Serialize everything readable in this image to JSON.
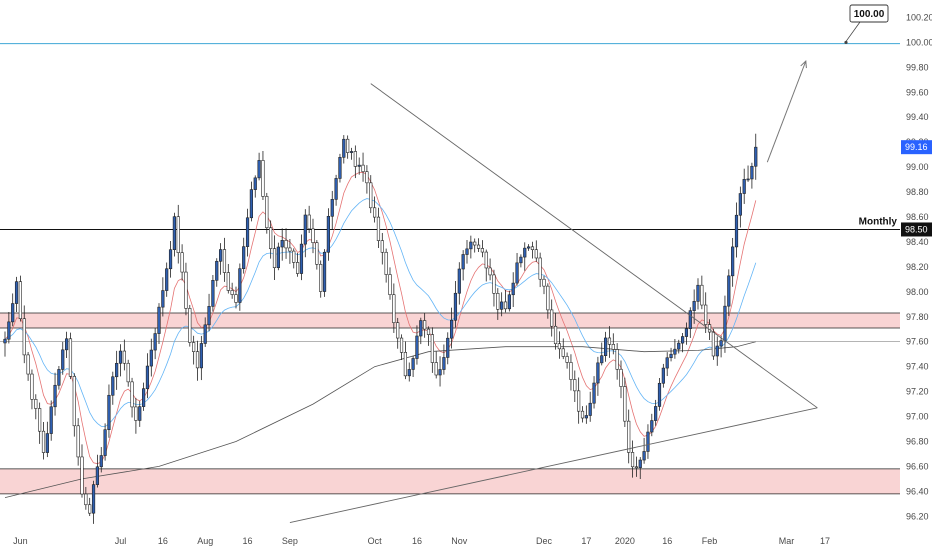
{
  "colors": {
    "background": "#ffffff",
    "up_body": "#2f5fb0",
    "down_body": "#ffffff",
    "candle_wick": "#222222",
    "zone_fill": "#f9d4d4",
    "zone_edge": "#222222",
    "target_line": "#3fa7d6",
    "ema_fast": "#e57373",
    "ema_slow": "#64b5f6",
    "ma_long": "#555555",
    "last_price_tag": "#2962ff"
  },
  "chart_data": {
    "type": "candlestick",
    "title": "",
    "xlabel": "",
    "ylabel": "",
    "ylim": [
      96.05,
      100.26
    ],
    "y_ticks": [
      "96.20",
      "96.40",
      "96.60",
      "96.80",
      "97.00",
      "97.20",
      "97.40",
      "97.60",
      "97.80",
      "98.00",
      "98.20",
      "98.40",
      "98.60",
      "98.80",
      "99.00",
      "99.20",
      "99.40",
      "99.60",
      "99.80",
      "100.00",
      "100.20"
    ],
    "x_ticks": [
      {
        "label": "Jun",
        "day": 4
      },
      {
        "label": "Jul",
        "day": 30
      },
      {
        "label": "16",
        "day": 41
      },
      {
        "label": "Aug",
        "day": 52
      },
      {
        "label": "16",
        "day": 63
      },
      {
        "label": "Sep",
        "day": 74
      },
      {
        "label": "Oct",
        "day": 96
      },
      {
        "label": "16",
        "day": 107
      },
      {
        "label": "Nov",
        "day": 118
      },
      {
        "label": "Dec",
        "day": 140
      },
      {
        "label": "17",
        "day": 151
      },
      {
        "label": "2020",
        "day": 161
      },
      {
        "label": "16",
        "day": 172
      },
      {
        "label": "Feb",
        "day": 183
      },
      {
        "label": "Mar",
        "day": 203
      },
      {
        "label": "17",
        "day": 213
      }
    ],
    "price_anchors": [
      [
        0,
        97.62
      ],
      [
        2,
        97.9
      ],
      [
        3,
        98.12
      ],
      [
        5,
        97.5
      ],
      [
        7,
        97.18
      ],
      [
        10,
        96.72
      ],
      [
        12,
        97.05
      ],
      [
        14,
        97.42
      ],
      [
        16,
        97.65
      ],
      [
        18,
        96.96
      ],
      [
        20,
        96.38
      ],
      [
        22,
        96.27
      ],
      [
        24,
        96.55
      ],
      [
        26,
        96.9
      ],
      [
        28,
        97.35
      ],
      [
        30,
        97.52
      ],
      [
        32,
        97.3
      ],
      [
        34,
        96.92
      ],
      [
        36,
        97.25
      ],
      [
        38,
        97.55
      ],
      [
        40,
        97.85
      ],
      [
        42,
        98.2
      ],
      [
        44,
        98.56
      ],
      [
        46,
        98.12
      ],
      [
        48,
        97.62
      ],
      [
        50,
        97.4
      ],
      [
        52,
        97.72
      ],
      [
        54,
        98.12
      ],
      [
        56,
        98.38
      ],
      [
        58,
        98.02
      ],
      [
        60,
        97.9
      ],
      [
        62,
        98.38
      ],
      [
        64,
        98.82
      ],
      [
        66,
        99.02
      ],
      [
        68,
        98.52
      ],
      [
        70,
        98.22
      ],
      [
        72,
        98.45
      ],
      [
        74,
        98.3
      ],
      [
        76,
        98.1
      ],
      [
        78,
        98.58
      ],
      [
        80,
        98.38
      ],
      [
        82,
        98.05
      ],
      [
        84,
        98.62
      ],
      [
        86,
        98.92
      ],
      [
        88,
        99.2
      ],
      [
        90,
        99.08
      ],
      [
        92,
        99.03
      ],
      [
        94,
        98.88
      ],
      [
        96,
        98.55
      ],
      [
        98,
        98.28
      ],
      [
        100,
        97.98
      ],
      [
        102,
        97.6
      ],
      [
        104,
        97.35
      ],
      [
        106,
        97.5
      ],
      [
        108,
        97.75
      ],
      [
        110,
        97.62
      ],
      [
        112,
        97.3
      ],
      [
        114,
        97.52
      ],
      [
        116,
        97.82
      ],
      [
        118,
        98.15
      ],
      [
        120,
        98.38
      ],
      [
        122,
        98.42
      ],
      [
        124,
        98.32
      ],
      [
        126,
        98.15
      ],
      [
        128,
        97.88
      ],
      [
        130,
        97.9
      ],
      [
        132,
        98.12
      ],
      [
        134,
        98.32
      ],
      [
        136,
        98.4
      ],
      [
        138,
        98.28
      ],
      [
        140,
        98.02
      ],
      [
        142,
        97.7
      ],
      [
        144,
        97.5
      ],
      [
        146,
        97.42
      ],
      [
        148,
        97.22
      ],
      [
        150,
        96.95
      ],
      [
        152,
        97.15
      ],
      [
        154,
        97.45
      ],
      [
        156,
        97.62
      ],
      [
        158,
        97.55
      ],
      [
        160,
        97.2
      ],
      [
        162,
        96.72
      ],
      [
        164,
        96.55
      ],
      [
        166,
        96.72
      ],
      [
        168,
        96.95
      ],
      [
        170,
        97.22
      ],
      [
        172,
        97.48
      ],
      [
        174,
        97.52
      ],
      [
        176,
        97.6
      ],
      [
        178,
        97.8
      ],
      [
        180,
        98.02
      ],
      [
        182,
        97.78
      ],
      [
        184,
        97.48
      ],
      [
        186,
        97.62
      ],
      [
        188,
        98.1
      ],
      [
        190,
        98.62
      ],
      [
        192,
        98.88
      ],
      [
        194,
        99.02
      ],
      [
        195,
        99.16
      ]
    ],
    "last_day": 195,
    "last_price": "99.16",
    "horizontal_lines": [
      {
        "name": "Monthly",
        "value": 98.5,
        "label": "Monthly",
        "price_label": "98.50"
      },
      {
        "name": "target",
        "value": 99.99
      }
    ],
    "zones": [
      {
        "name": "resistance-zone",
        "from": 97.71,
        "to": 97.83
      },
      {
        "name": "support-zone",
        "from": 96.38,
        "to": 96.58
      }
    ],
    "thin_level": 97.6,
    "annotation": {
      "text": "100.00",
      "value": 100.0
    },
    "trendlines": [
      {
        "name": "descending-trendline",
        "from": [
          95,
          99.67
        ],
        "to": [
          211,
          97.07
        ]
      },
      {
        "name": "ascending-trendline",
        "from": [
          74,
          96.15
        ],
        "to": [
          211,
          97.07
        ]
      }
    ],
    "projection_arrow": {
      "from": [
        198,
        99.04
      ],
      "to": [
        208,
        99.85
      ]
    },
    "moving_average_long": [
      [
        0,
        96.35
      ],
      [
        20,
        96.5
      ],
      [
        40,
        96.6
      ],
      [
        60,
        96.8
      ],
      [
        80,
        97.1
      ],
      [
        96,
        97.4
      ],
      [
        110,
        97.52
      ],
      [
        130,
        97.56
      ],
      [
        150,
        97.56
      ],
      [
        166,
        97.52
      ],
      [
        180,
        97.53
      ],
      [
        190,
        97.56
      ],
      [
        195,
        97.6
      ]
    ]
  }
}
